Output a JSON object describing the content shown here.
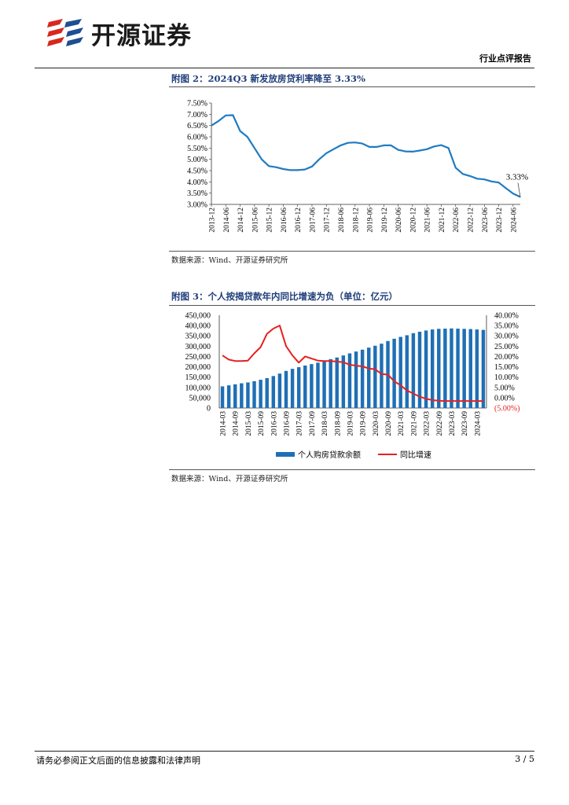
{
  "header": {
    "brand": "开源证券",
    "report_type": "行业点评报告"
  },
  "figure2": {
    "title": "附图 2：2024Q3 新发放房贷利率降至 3.33%",
    "source": "数据来源：Wind、开源证券研究所",
    "chart_data": {
      "type": "line",
      "title": "2024Q3 新发放房贷利率降至 3.33%",
      "x": [
        "2013-12",
        "2014-03",
        "2014-06",
        "2014-09",
        "2014-12",
        "2015-03",
        "2015-06",
        "2015-09",
        "2015-12",
        "2016-03",
        "2016-06",
        "2016-09",
        "2016-12",
        "2017-03",
        "2017-06",
        "2017-09",
        "2017-12",
        "2018-03",
        "2018-06",
        "2018-09",
        "2018-12",
        "2019-03",
        "2019-06",
        "2019-09",
        "2019-12",
        "2020-03",
        "2020-06",
        "2020-09",
        "2020-12",
        "2021-03",
        "2021-06",
        "2021-09",
        "2021-12",
        "2022-03",
        "2022-06",
        "2022-09",
        "2022-12",
        "2023-03",
        "2023-06",
        "2023-09",
        "2023-12",
        "2024-03",
        "2024-06",
        "2024-09"
      ],
      "tick_labels": [
        "2013-12",
        "2014-06",
        "2014-12",
        "2015-06",
        "2015-12",
        "2016-06",
        "2016-12",
        "2017-06",
        "2017-12",
        "2018-06",
        "2018-12",
        "2019-06",
        "2019-12",
        "2020-06",
        "2020-12",
        "2021-06",
        "2021-12",
        "2022-06",
        "2022-12",
        "2023-06",
        "2023-12",
        "2024-06"
      ],
      "values": [
        6.5,
        6.7,
        6.95,
        6.96,
        6.25,
        6.0,
        5.5,
        5.0,
        4.7,
        4.65,
        4.57,
        4.52,
        4.52,
        4.55,
        4.68,
        5.0,
        5.27,
        5.45,
        5.62,
        5.73,
        5.75,
        5.7,
        5.55,
        5.55,
        5.62,
        5.62,
        5.42,
        5.35,
        5.34,
        5.39,
        5.45,
        5.57,
        5.63,
        5.5,
        4.63,
        4.35,
        4.26,
        4.14,
        4.11,
        4.02,
        3.97,
        3.72,
        3.48,
        3.33
      ],
      "yticks": [
        "3.00%",
        "3.50%",
        "4.00%",
        "4.50%",
        "5.00%",
        "5.50%",
        "6.00%",
        "6.50%",
        "7.00%",
        "7.50%"
      ],
      "ylim": [
        3.0,
        7.5
      ],
      "annotation": "3.33%",
      "color": "#1f7bc1"
    }
  },
  "figure3": {
    "title": "附图 3：个人按揭贷款年内同比增速为负（单位：亿元）",
    "source": "数据来源：Wind、开源证券研究所",
    "chart_data": {
      "type": "bar",
      "title": "个人按揭贷款年内同比增速为负（单位：亿元）",
      "categories": [
        "2014-03",
        "2014-06",
        "2014-09",
        "2014-12",
        "2015-03",
        "2015-06",
        "2015-09",
        "2015-12",
        "2016-03",
        "2016-06",
        "2016-09",
        "2016-12",
        "2017-03",
        "2017-06",
        "2017-09",
        "2017-12",
        "2018-03",
        "2018-06",
        "2018-09",
        "2018-12",
        "2019-03",
        "2019-06",
        "2019-09",
        "2019-12",
        "2020-03",
        "2020-06",
        "2020-09",
        "2020-12",
        "2021-03",
        "2021-06",
        "2021-09",
        "2021-12",
        "2022-03",
        "2022-06",
        "2022-09",
        "2022-12",
        "2023-03",
        "2023-06",
        "2023-09",
        "2023-12",
        "2024-03",
        "2024-06"
      ],
      "tick_labels": [
        "2014-03",
        "2014-09",
        "2015-03",
        "2015-09",
        "2016-03",
        "2016-09",
        "2017-03",
        "2017-09",
        "2018-03",
        "2018-09",
        "2019-03",
        "2019-09",
        "2020-03",
        "2020-09",
        "2021-03",
        "2021-09",
        "2022-03",
        "2022-09",
        "2023-03",
        "2023-09",
        "2024-03"
      ],
      "series": [
        {
          "name": "个人购房贷款余额",
          "axis": "left",
          "color": "#1f6fb5",
          "values": [
            105000,
            110000,
            115000,
            120000,
            124000,
            130000,
            137000,
            145000,
            155000,
            167000,
            180000,
            190000,
            198000,
            206000,
            213000,
            220000,
            229000,
            237000,
            245000,
            255000,
            265000,
            274000,
            283000,
            293000,
            302000,
            312000,
            325000,
            336000,
            345000,
            353000,
            363000,
            370000,
            376000,
            381000,
            384000,
            385000,
            386000,
            385000,
            384000,
            383000,
            381000,
            379000
          ]
        },
        {
          "name": "同比增速",
          "axis": "right",
          "color": "#e52020",
          "values": [
            20.5,
            18.5,
            17.8,
            17.8,
            18.0,
            21.5,
            24.5,
            31.0,
            33.5,
            35.0,
            25.0,
            20.5,
            17.0,
            20.0,
            19.0,
            18.0,
            17.8,
            17.8,
            17.5,
            17.2,
            16.0,
            15.5,
            15.2,
            14.2,
            13.8,
            11.5,
            11.2,
            8.0,
            6.0,
            3.5,
            2.0,
            0.5,
            -0.5,
            -1.2,
            -1.5,
            -1.6,
            -1.6,
            -1.6,
            -1.6,
            -1.6,
            -1.6,
            -1.6
          ]
        }
      ],
      "y_left_ticks": [
        "0",
        "50,000",
        "100,000",
        "150,000",
        "200,000",
        "250,000",
        "300,000",
        "350,000",
        "400,000",
        "450,000"
      ],
      "y_left_lim": [
        0,
        450000
      ],
      "y_right_ticks": [
        "(5.00%)",
        "0.00%",
        "5.00%",
        "10.00%",
        "15.00%",
        "20.00%",
        "25.00%",
        "30.00%",
        "35.00%",
        "40.00%"
      ],
      "y_right_lim": [
        -5,
        40
      ],
      "negative_label_color": "#e52020",
      "legend_position": "bottom"
    }
  },
  "footer": {
    "disclaimer": "请务必参阅正文后面的信息披露和法律声明",
    "page": "3 / 5"
  }
}
